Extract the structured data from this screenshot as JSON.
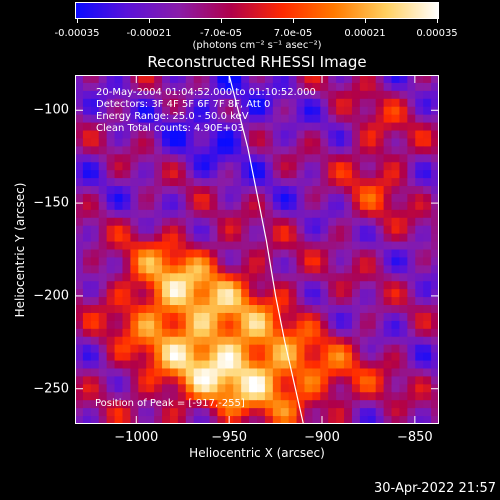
{
  "colorbar": {
    "ticks": [
      "-0.00035",
      "-0.00021",
      "-7.0e-05",
      "7.0e-05",
      "0.00021",
      "0.00035"
    ],
    "unit": "(photons cm⁻² s⁻¹ asec⁻²)",
    "colors": [
      "#0b0bff",
      "#5b12d8",
      "#8a1ca8",
      "#b0004a",
      "#ff2a00",
      "#ff7a00",
      "#ffd060",
      "#ffffff"
    ]
  },
  "title": "Reconstructed RHESSI Image",
  "info": {
    "time_range": "20-May-2004 01:04:52.000 to 01:10:52.000",
    "detectors": "Detectors: 3F 4F 5F 6F 7F 8F, Att 0",
    "energy": "Energy Range: 25.0 - 50.0 keV",
    "clean": "Clean     Total counts: 4.90E+03",
    "peak": "Position of Peak = [-917,-255]"
  },
  "timestamp": "30-Apr-2022 21:57",
  "chart_data": {
    "type": "heatmap",
    "title": "Reconstructed RHESSI Image",
    "xlabel": "Heliocentric X (arcsec)",
    "ylabel": "Heliocentric Y (arcsec)",
    "xlim": [
      -1033,
      -837
    ],
    "ylim": [
      -269,
      -81
    ],
    "x_ticks": [
      -1000,
      -950,
      -900,
      -850
    ],
    "y_ticks": [
      -100,
      -150,
      -200,
      -250
    ],
    "x_tick_labels": [
      "−1000",
      "−950",
      "−900",
      "−850"
    ],
    "y_tick_labels": [
      "−100",
      "−150",
      "−200",
      "−250"
    ],
    "value_range": [
      -0.00035,
      0.00035
    ],
    "peak": [
      -917,
      -255
    ],
    "limb_curve": [
      [
        -950,
        -81
      ],
      [
        -940,
        -120
      ],
      [
        -930,
        -170
      ],
      [
        -925,
        -200
      ],
      [
        -920,
        -225
      ],
      [
        -910,
        -269
      ]
    ],
    "grid": false,
    "legend": "colorbar top"
  }
}
